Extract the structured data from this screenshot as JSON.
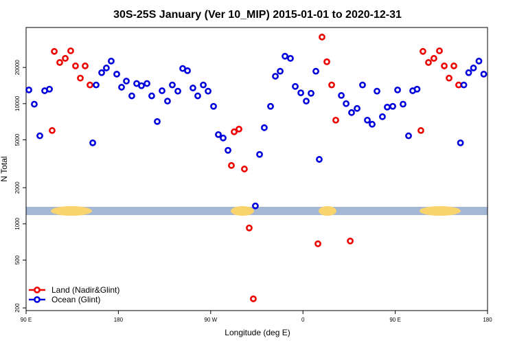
{
  "chart_data": {
    "type": "scatter",
    "title": "30S-25S January (Ver 10_MIP)   2015-01-01 to 2020-12-31",
    "xlabel": "Longitude (deg E)",
    "ylabel": "N Total",
    "xlim": [
      90,
      540
    ],
    "xticks": [
      {
        "value": 90,
        "label": "90 E"
      },
      180,
      {
        "value": 270,
        "label": "90 W"
      },
      {
        "value": 360,
        "label": "0"
      },
      {
        "value": 450,
        "label": "90 E"
      },
      {
        "value": 540,
        "label": "180"
      }
    ],
    "ylim": [
      190,
      43000
    ],
    "log_y": true,
    "yticks": [
      200,
      500,
      1000,
      2000,
      5000,
      10000,
      20000
    ],
    "legend": "bottom-left",
    "series": [
      {
        "name": "Land (Nadir&Glint)",
        "color": "#ee0000",
        "x": [
          115.4,
          117.5,
          122.8,
          128.2,
          133.5,
          138.2,
          142.9,
          147.6,
          152.3,
          290.2,
          292.9,
          297.6,
          302.9,
          307.6,
          311.6,
          374.6,
          378.6,
          383.3,
          388,
          392,
          406.1,
          475,
          477,
          482.4,
          487.7,
          493.1,
          497.8,
          502.5,
          507.2,
          511.8
        ],
        "values": [
          5980,
          27200,
          22000,
          23800,
          27500,
          20600,
          16300,
          20600,
          14300,
          3060,
          5830,
          6140,
          2860,
          925,
          238,
          683,
          35800,
          22300,
          14300,
          7290,
          720,
          5980,
          27200,
          22000,
          23800,
          27500,
          20600,
          16300,
          20600,
          14300
        ]
      },
      {
        "name": "Ocean (Glint)",
        "color": "#0000dd",
        "x": [
          92.7,
          98,
          103.4,
          108.1,
          112.8,
          155,
          158.3,
          163.7,
          168.3,
          173,
          178.4,
          183.1,
          187.8,
          193.1,
          197.8,
          202.5,
          207.9,
          212.5,
          217.9,
          222.6,
          227.9,
          232.6,
          238,
          242.7,
          247.4,
          252.7,
          257.4,
          262.8,
          267.5,
          272.8,
          277.5,
          282.2,
          286.9,
          313.6,
          317.7,
          322.3,
          328.4,
          333.1,
          337.8,
          342.5,
          347.8,
          352.5,
          357.9,
          363.2,
          367.9,
          372.6,
          375.9,
          397.4,
          402.1,
          407.4,
          412.8,
          418.1,
          422.8,
          427.5,
          432.2,
          437.5,
          442.2,
          447.6,
          452.3,
          457.6,
          463,
          467,
          471.3,
          513.6,
          516.9,
          521.6,
          526.3,
          531.6,
          536.3
        ],
        "values": [
          13000,
          9900,
          5400,
          12800,
          13200,
          4720,
          14300,
          18100,
          19800,
          22600,
          17600,
          13700,
          15400,
          11600,
          14700,
          14100,
          14700,
          11600,
          7100,
          12800,
          10500,
          14300,
          12700,
          19600,
          18800,
          13500,
          11600,
          14300,
          12700,
          9500,
          5530,
          5180,
          4090,
          1410,
          3780,
          6310,
          9500,
          16900,
          18600,
          24800,
          23800,
          13900,
          12300,
          10500,
          12200,
          18600,
          3440,
          11700,
          10000,
          8430,
          9120,
          14300,
          7290,
          6740,
          12700,
          7790,
          9360,
          9500,
          13000,
          9900,
          5400,
          12800,
          13200,
          4720,
          14300,
          18100,
          19800,
          22600,
          17600
        ]
      }
    ]
  }
}
